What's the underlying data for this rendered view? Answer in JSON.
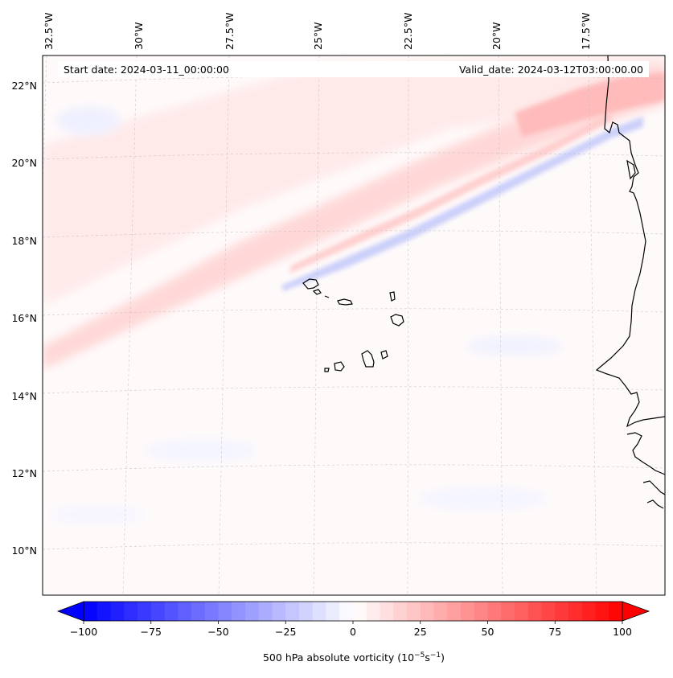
{
  "header": {
    "start_date": "Start date: 2024-03-11_00:00:00",
    "valid_date": "Valid_date: 2024-03-12T03:00:00.00"
  },
  "longitude_labels": [
    "32.5°W",
    "30°W",
    "27.5°W",
    "25°W",
    "22.5°W",
    "20°W",
    "17.5°W"
  ],
  "latitude_labels": [
    "22°N",
    "20°N",
    "18°N",
    "16°N",
    "14°N",
    "12°N",
    "10°N"
  ],
  "colorbar": {
    "ticks": [
      "−100",
      "−75",
      "−50",
      "−25",
      "0",
      "25",
      "50",
      "75",
      "100"
    ],
    "tick_values": [
      -100,
      -75,
      -50,
      -25,
      0,
      25,
      50,
      75,
      100
    ],
    "range": [
      -100,
      100
    ],
    "label_main": "500 hPa absolute vorticity (10",
    "label_exp1": "−5",
    "label_mid": "s",
    "label_exp2": "−1",
    "label_end": ")",
    "colors": {
      "min": "#0000ff",
      "mid": "#ffffff",
      "max": "#ff0000"
    },
    "extend": "both"
  },
  "map": {
    "field": "500 hPa absolute vorticity",
    "projection": "Lambert conformal",
    "gridlines": true,
    "coastlines": true,
    "features": {
      "islands": "Cape Verde Islands",
      "coast": "West Africa"
    }
  }
}
